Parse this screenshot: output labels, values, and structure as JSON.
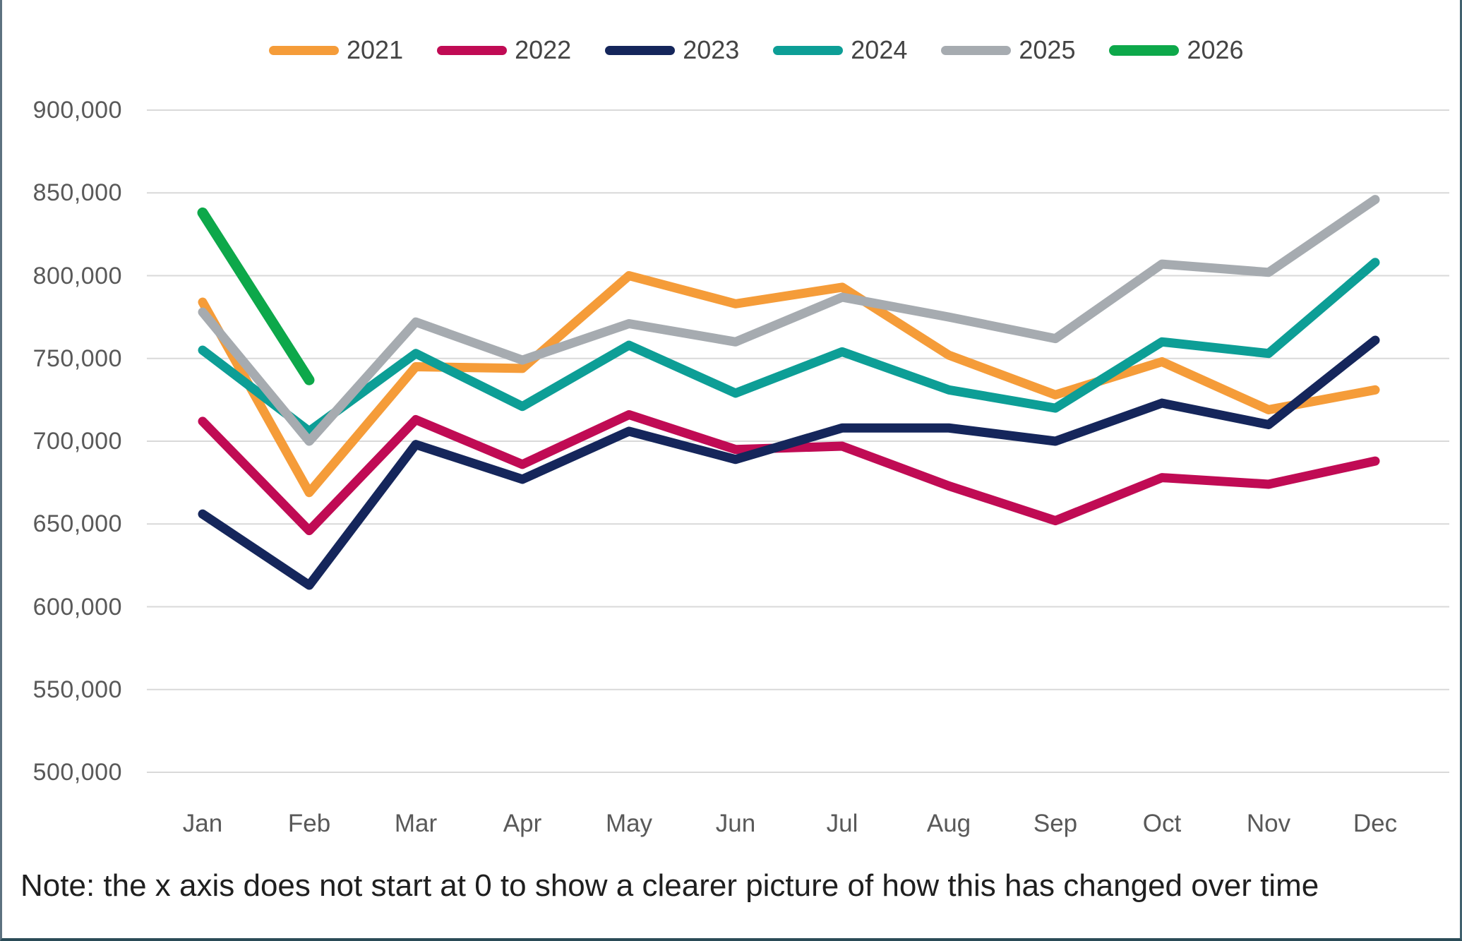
{
  "legend": {
    "items": [
      {
        "label": "2021",
        "color": "#F59C39"
      },
      {
        "label": "2022",
        "color": "#C00B54"
      },
      {
        "label": "2023",
        "color": "#15265B"
      },
      {
        "label": "2024",
        "color": "#0D9E96"
      },
      {
        "label": "2025",
        "color": "#A6ABB0"
      },
      {
        "label": "2026",
        "color": "#0DA84A"
      }
    ]
  },
  "chart_data": {
    "type": "line",
    "title": "",
    "xlabel": "",
    "ylabel": "",
    "categories": [
      "Jan",
      "Feb",
      "Mar",
      "Apr",
      "May",
      "Jun",
      "Jul",
      "Aug",
      "Sep",
      "Oct",
      "Nov",
      "Dec"
    ],
    "series": [
      {
        "name": "2021",
        "color": "#F59C39",
        "line_width": 13,
        "values": [
          784000,
          669000,
          745000,
          744000,
          800000,
          783000,
          793000,
          752000,
          728000,
          748000,
          719000,
          731000
        ]
      },
      {
        "name": "2022",
        "color": "#C00B54",
        "line_width": 13,
        "values": [
          712000,
          646000,
          713000,
          686000,
          716000,
          695000,
          697000,
          673000,
          652000,
          678000,
          674000,
          688000
        ]
      },
      {
        "name": "2023",
        "color": "#15265B",
        "line_width": 13,
        "values": [
          656000,
          613000,
          698000,
          677000,
          706000,
          689000,
          708000,
          708000,
          700000,
          723000,
          710000,
          761000
        ]
      },
      {
        "name": "2024",
        "color": "#0D9E96",
        "line_width": 13,
        "values": [
          755000,
          706000,
          753000,
          721000,
          758000,
          729000,
          754000,
          731000,
          720000,
          760000,
          753000,
          808000
        ]
      },
      {
        "name": "2025",
        "color": "#A6ABB0",
        "line_width": 13,
        "values": [
          778000,
          700000,
          772000,
          749000,
          771000,
          760000,
          787000,
          775000,
          762000,
          807000,
          802000,
          846000
        ]
      },
      {
        "name": "2026",
        "color": "#0DA84A",
        "line_width": 15,
        "values": [
          838000,
          737000,
          null,
          null,
          null,
          null,
          null,
          null,
          null,
          null,
          null,
          null
        ]
      }
    ],
    "ylim": [
      500000,
      900000
    ],
    "y_tick_step": 50000,
    "y_tick_labels": [
      "900,000",
      "850,000",
      "800,000",
      "750,000",
      "700,000",
      "650,000",
      "600,000",
      "550,000",
      "500,000"
    ],
    "grid": "horizontal",
    "legend_position": "top"
  },
  "note": {
    "text": "Note: the x axis does not start at 0 to show a clearer picture of how this has changed over time"
  },
  "colors": {
    "background": "#FFFFFF",
    "gridline": "#D9D9D9",
    "axis_text": "#595959",
    "legend_text": "#444444",
    "note_text": "#1F1F1F"
  }
}
